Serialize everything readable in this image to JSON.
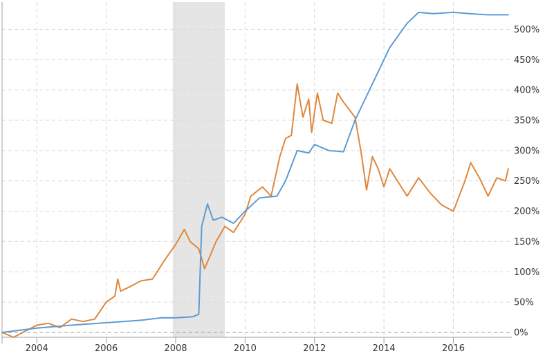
{
  "chart_data": {
    "type": "line",
    "x_axis": {
      "type": "date",
      "range": [
        "2003-01",
        "2017-08"
      ],
      "tick_labels": [
        "2004",
        "2006",
        "2008",
        "2010",
        "2012",
        "2014",
        "2016"
      ],
      "grid": true
    },
    "y_axis": {
      "position": "right",
      "range": [
        -8,
        545
      ],
      "unit": "%",
      "tick_values": [
        0,
        50,
        100,
        150,
        200,
        250,
        300,
        350,
        400,
        450,
        500
      ],
      "tick_labels": [
        "0%",
        "50%",
        "100%",
        "150%",
        "200%",
        "250%",
        "300%",
        "350%",
        "400%",
        "450%",
        "500%"
      ],
      "grid": true,
      "zero_line": "dashed"
    },
    "shaded_region": {
      "from": "2007-12",
      "to": "2009-06",
      "color": "#e5e5e5"
    },
    "series": [
      {
        "color": "#e0873b",
        "points": [
          [
            "2003-01",
            0
          ],
          [
            "2003-05",
            -8
          ],
          [
            "2003-09",
            2
          ],
          [
            "2004-01",
            12
          ],
          [
            "2004-05",
            15
          ],
          [
            "2004-09",
            8
          ],
          [
            "2005-01",
            22
          ],
          [
            "2005-05",
            18
          ],
          [
            "2005-09",
            22
          ],
          [
            "2006-01",
            50
          ],
          [
            "2006-04",
            60
          ],
          [
            "2006-05",
            88
          ],
          [
            "2006-06",
            68
          ],
          [
            "2006-09",
            75
          ],
          [
            "2007-01",
            85
          ],
          [
            "2007-05",
            88
          ],
          [
            "2007-09",
            118
          ],
          [
            "2008-01",
            145
          ],
          [
            "2008-04",
            170
          ],
          [
            "2008-06",
            150
          ],
          [
            "2008-09",
            138
          ],
          [
            "2008-11",
            105
          ],
          [
            "2009-03",
            150
          ],
          [
            "2009-06",
            175
          ],
          [
            "2009-09",
            165
          ],
          [
            "2010-01",
            195
          ],
          [
            "2010-03",
            225
          ],
          [
            "2010-07",
            240
          ],
          [
            "2010-10",
            225
          ],
          [
            "2011-01",
            290
          ],
          [
            "2011-03",
            320
          ],
          [
            "2011-05",
            325
          ],
          [
            "2011-07",
            410
          ],
          [
            "2011-09",
            355
          ],
          [
            "2011-11",
            385
          ],
          [
            "2011-12",
            330
          ],
          [
            "2012-02",
            395
          ],
          [
            "2012-04",
            350
          ],
          [
            "2012-07",
            345
          ],
          [
            "2012-09",
            395
          ],
          [
            "2012-11",
            380
          ],
          [
            "2013-03",
            355
          ],
          [
            "2013-05",
            300
          ],
          [
            "2013-07",
            235
          ],
          [
            "2013-09",
            290
          ],
          [
            "2013-11",
            270
          ],
          [
            "2014-01",
            240
          ],
          [
            "2014-03",
            270
          ],
          [
            "2014-07",
            240
          ],
          [
            "2014-09",
            225
          ],
          [
            "2015-01",
            255
          ],
          [
            "2015-05",
            230
          ],
          [
            "2015-09",
            210
          ],
          [
            "2016-01",
            200
          ],
          [
            "2016-05",
            250
          ],
          [
            "2016-07",
            280
          ],
          [
            "2016-10",
            255
          ],
          [
            "2017-01",
            225
          ],
          [
            "2017-04",
            255
          ],
          [
            "2017-07",
            250
          ],
          [
            "2017-08",
            270
          ]
        ]
      },
      {
        "color": "#5b9bd5",
        "points": [
          [
            "2003-01",
            0
          ],
          [
            "2004-01",
            7
          ],
          [
            "2005-01",
            12
          ],
          [
            "2006-01",
            16
          ],
          [
            "2007-01",
            20
          ],
          [
            "2007-08",
            24
          ],
          [
            "2008-01",
            24
          ],
          [
            "2008-07",
            26
          ],
          [
            "2008-09",
            30
          ],
          [
            "2008-10",
            175
          ],
          [
            "2008-12",
            212
          ],
          [
            "2009-02",
            185
          ],
          [
            "2009-05",
            190
          ],
          [
            "2009-09",
            180
          ],
          [
            "2010-01",
            200
          ],
          [
            "2010-06",
            222
          ],
          [
            "2010-12",
            225
          ],
          [
            "2011-03",
            250
          ],
          [
            "2011-07",
            300
          ],
          [
            "2011-11",
            296
          ],
          [
            "2012-01",
            310
          ],
          [
            "2012-06",
            300
          ],
          [
            "2012-11",
            298
          ],
          [
            "2013-03",
            350
          ],
          [
            "2013-09",
            410
          ],
          [
            "2014-03",
            470
          ],
          [
            "2014-09",
            510
          ],
          [
            "2015-01",
            528
          ],
          [
            "2015-06",
            526
          ],
          [
            "2016-01",
            528
          ],
          [
            "2016-09",
            525
          ],
          [
            "2017-01",
            524
          ],
          [
            "2017-08",
            524
          ]
        ]
      }
    ]
  }
}
